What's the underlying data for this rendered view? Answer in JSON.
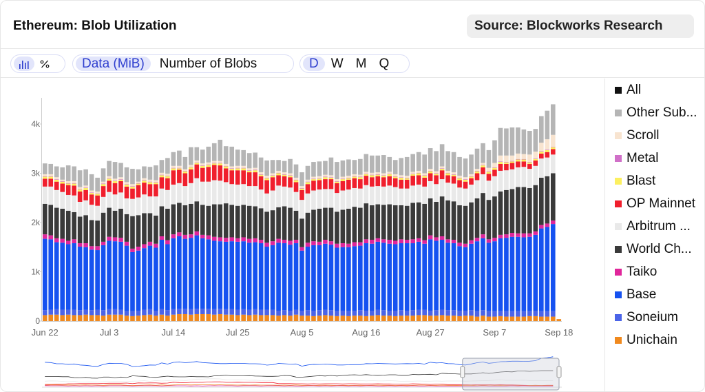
{
  "header": {
    "title": "Ethereum: Blob Utilization",
    "source": "Source: Blockworks Research"
  },
  "toolbar": {
    "chart_modes": [
      {
        "icon": "bar-chart-icon",
        "active": true
      },
      {
        "icon": "percent-icon",
        "active": false
      }
    ],
    "metrics": [
      {
        "label": "Data (MiB)",
        "active": true
      },
      {
        "label": "Number of Blobs",
        "active": false
      }
    ],
    "periods": [
      {
        "label": "D",
        "active": true
      },
      {
        "label": "W",
        "active": false
      },
      {
        "label": "M",
        "active": false
      },
      {
        "label": "Q",
        "active": false
      }
    ]
  },
  "legend": [
    {
      "label": "All",
      "color": "#111111"
    },
    {
      "label": "Other Sub...",
      "color": "#b5b5b5"
    },
    {
      "label": "Scroll",
      "color": "#f8e4d0"
    },
    {
      "label": "Metal",
      "color": "#d070c8"
    },
    {
      "label": "Blast",
      "color": "#fcf060"
    },
    {
      "label": "OP Mainnet",
      "color": "#f01f2d"
    },
    {
      "label": "Arbitrum ...",
      "color": "#e9e9e9"
    },
    {
      "label": "World Ch...",
      "color": "#3a3a3a"
    },
    {
      "label": "Taiko",
      "color": "#e0269b"
    },
    {
      "label": "Base",
      "color": "#1652f0"
    },
    {
      "label": "Soneium",
      "color": "#4b64e8"
    },
    {
      "label": "Unichain",
      "color": "#f0891e"
    }
  ],
  "chart_data": {
    "type": "bar",
    "stacked": true,
    "x_tick_labels": [
      "Jun 22",
      "Jul 3",
      "Jul 14",
      "Jul 25",
      "Aug 5",
      "Aug 16",
      "Aug 27",
      "Sep 7",
      "Sep 18"
    ],
    "y_tick_labels": [
      "0",
      "1k",
      "2k",
      "3k",
      "4k"
    ],
    "ylim": [
      0,
      4400
    ],
    "grid": false,
    "legend_position": "right",
    "watermark": "Blockworks Research",
    "categories": [
      "Jun 22",
      "Jun 23",
      "Jun 24",
      "Jun 25",
      "Jun 26",
      "Jun 27",
      "Jun 28",
      "Jun 29",
      "Jun 30",
      "Jul 1",
      "Jul 2",
      "Jul 3",
      "Jul 4",
      "Jul 5",
      "Jul 6",
      "Jul 7",
      "Jul 8",
      "Jul 9",
      "Jul 10",
      "Jul 11",
      "Jul 12",
      "Jul 13",
      "Jul 14",
      "Jul 15",
      "Jul 16",
      "Jul 17",
      "Jul 18",
      "Jul 19",
      "Jul 20",
      "Jul 21",
      "Jul 22",
      "Jul 23",
      "Jul 24",
      "Jul 25",
      "Jul 26",
      "Jul 27",
      "Jul 28",
      "Jul 29",
      "Jul 30",
      "Jul 31",
      "Aug 1",
      "Aug 2",
      "Aug 3",
      "Aug 4",
      "Aug 5",
      "Aug 6",
      "Aug 7",
      "Aug 8",
      "Aug 9",
      "Aug 10",
      "Aug 11",
      "Aug 12",
      "Aug 13",
      "Aug 14",
      "Aug 15",
      "Aug 16",
      "Aug 17",
      "Aug 18",
      "Aug 19",
      "Aug 20",
      "Aug 21",
      "Aug 22",
      "Aug 23",
      "Aug 24",
      "Aug 25",
      "Aug 26",
      "Aug 27",
      "Aug 28",
      "Aug 29",
      "Aug 30",
      "Aug 31",
      "Sep 1",
      "Sep 2",
      "Sep 3",
      "Sep 4",
      "Sep 5",
      "Sep 6",
      "Sep 7",
      "Sep 8",
      "Sep 9",
      "Sep 10",
      "Sep 11",
      "Sep 12",
      "Sep 13",
      "Sep 14",
      "Sep 15",
      "Sep 16",
      "Sep 17",
      "Sep 18"
    ],
    "series": [
      {
        "name": "Unichain",
        "values": [
          120,
          130,
          130,
          120,
          130,
          120,
          120,
          130,
          120,
          120,
          110,
          130,
          130,
          130,
          110,
          100,
          110,
          120,
          130,
          110,
          130,
          110,
          130,
          140,
          140,
          130,
          140,
          140,
          140,
          130,
          140,
          130,
          130,
          120,
          130,
          120,
          130,
          120,
          120,
          120,
          110,
          120,
          110,
          130,
          110,
          110,
          100,
          110,
          120,
          110,
          100,
          110,
          100,
          110,
          110,
          100,
          110,
          120,
          110,
          110,
          100,
          110,
          110,
          110,
          120,
          120,
          110,
          110,
          120,
          110,
          110,
          100,
          110,
          110,
          90,
          110,
          90,
          90,
          100,
          90,
          90,
          90,
          90,
          100,
          100,
          90,
          90,
          90,
          40
        ]
      },
      {
        "name": "Soneium",
        "values": [
          100,
          100,
          110,
          110,
          100,
          110,
          100,
          100,
          100,
          110,
          110,
          110,
          110,
          100,
          90,
          100,
          100,
          110,
          110,
          100,
          110,
          110,
          110,
          110,
          110,
          110,
          110,
          110,
          110,
          110,
          110,
          110,
          110,
          110,
          110,
          110,
          110,
          110,
          110,
          110,
          100,
          100,
          100,
          100,
          100,
          110,
          110,
          110,
          110,
          110,
          100,
          100,
          100,
          100,
          110,
          110,
          100,
          110,
          110,
          100,
          110,
          110,
          100,
          110,
          110,
          110,
          100,
          110,
          110,
          110,
          110,
          110,
          100,
          110,
          110,
          110,
          110,
          110,
          100,
          110,
          110,
          110,
          110,
          100,
          110,
          110,
          110,
          110,
          0
        ]
      },
      {
        "name": "Base",
        "values": [
          1450,
          1430,
          1360,
          1360,
          1330,
          1350,
          1290,
          1270,
          1230,
          1210,
          1320,
          1390,
          1380,
          1380,
          1330,
          1200,
          1220,
          1250,
          1290,
          1280,
          1410,
          1340,
          1440,
          1470,
          1420,
          1450,
          1490,
          1430,
          1410,
          1390,
          1370,
          1370,
          1380,
          1380,
          1380,
          1360,
          1360,
          1350,
          1280,
          1310,
          1380,
          1360,
          1340,
          1350,
          1220,
          1290,
          1330,
          1320,
          1340,
          1330,
          1290,
          1290,
          1300,
          1310,
          1310,
          1370,
          1360,
          1380,
          1370,
          1360,
          1350,
          1360,
          1370,
          1360,
          1380,
          1340,
          1450,
          1410,
          1420,
          1370,
          1360,
          1310,
          1290,
          1350,
          1420,
          1460,
          1390,
          1420,
          1480,
          1490,
          1510,
          1510,
          1500,
          1510,
          1540,
          1680,
          1710,
          1770,
          0
        ]
      },
      {
        "name": "Taiko",
        "values": [
          90,
          80,
          80,
          80,
          70,
          80,
          70,
          80,
          70,
          80,
          70,
          80,
          80,
          80,
          80,
          70,
          80,
          80,
          80,
          80,
          70,
          80,
          80,
          80,
          80,
          70,
          80,
          70,
          80,
          80,
          80,
          80,
          80,
          70,
          80,
          80,
          80,
          70,
          80,
          80,
          80,
          70,
          80,
          70,
          70,
          80,
          80,
          70,
          80,
          70,
          80,
          80,
          70,
          80,
          70,
          80,
          80,
          70,
          70,
          80,
          70,
          80,
          70,
          80,
          70,
          70,
          80,
          70,
          70,
          70,
          70,
          70,
          70,
          70,
          70,
          80,
          70,
          70,
          70,
          70,
          80,
          70,
          80,
          70,
          70,
          70,
          70,
          70,
          0
        ]
      },
      {
        "name": "World Ch...",
        "values": [
          620,
          620,
          620,
          610,
          610,
          550,
          540,
          570,
          530,
          520,
          590,
          590,
          540,
          590,
          560,
          660,
          640,
          630,
          580,
          570,
          610,
          640,
          610,
          600,
          600,
          620,
          610,
          610,
          600,
          660,
          670,
          700,
          660,
          660,
          660,
          670,
          650,
          640,
          630,
          630,
          640,
          680,
          670,
          590,
          580,
          610,
          640,
          670,
          650,
          680,
          650,
          680,
          710,
          720,
          700,
          730,
          700,
          690,
          700,
          720,
          720,
          690,
          690,
          740,
          730,
          740,
          750,
          720,
          810,
          790,
          780,
          760,
          770,
          770,
          800,
          840,
          800,
          840,
          880,
          900,
          890,
          940,
          940,
          920,
          940,
          960,
          960,
          960,
          0
        ]
      },
      {
        "name": "Arbitrum ...",
        "values": [
          350,
          370,
          360,
          340,
          320,
          340,
          300,
          300,
          310,
          300,
          320,
          320,
          330,
          330,
          320,
          350,
          360,
          380,
          340,
          390,
          360,
          380,
          400,
          400,
          390,
          420,
          470,
          470,
          490,
          490,
          480,
          430,
          420,
          430,
          420,
          400,
          410,
          380,
          370,
          400,
          440,
          400,
          410,
          380,
          380,
          390,
          390,
          390,
          380,
          380,
          380,
          390,
          390,
          380,
          390,
          370,
          380,
          370,
          370,
          380,
          370,
          340,
          350,
          350,
          360,
          350,
          350,
          360,
          350,
          360,
          360,
          360,
          350,
          360,
          370,
          380,
          390,
          410,
          420,
          400,
          400,
          400,
          410,
          390,
          390,
          390,
          380,
          380,
          0
        ]
      },
      {
        "name": "OP Mainnet",
        "values": [
          160,
          160,
          170,
          170,
          200,
          200,
          210,
          210,
          210,
          210,
          220,
          230,
          230,
          230,
          240,
          210,
          250,
          240,
          250,
          250,
          230,
          240,
          290,
          270,
          260,
          280,
          280,
          280,
          300,
          310,
          310,
          280,
          280,
          290,
          280,
          280,
          280,
          270,
          270,
          270,
          210,
          210,
          210,
          200,
          200,
          190,
          200,
          190,
          200,
          200,
          200,
          190,
          200,
          200,
          190,
          190,
          190,
          200,
          190,
          190,
          180,
          180,
          180,
          200,
          190,
          180,
          160,
          180,
          180,
          150,
          150,
          150,
          140,
          130,
          140,
          140,
          140,
          130,
          140,
          130,
          130,
          120,
          110,
          100,
          110,
          100,
          110,
          110,
          0
        ]
      },
      {
        "name": "Blast",
        "values": [
          40,
          40,
          40,
          40,
          30,
          40,
          40,
          40,
          30,
          30,
          40,
          40,
          40,
          30,
          40,
          40,
          30,
          40,
          40,
          30,
          40,
          40,
          40,
          30,
          40,
          40,
          30,
          40,
          40,
          30,
          40,
          40,
          30,
          40,
          40,
          30,
          40,
          30,
          40,
          30,
          40,
          30,
          30,
          40,
          30,
          40,
          30,
          30,
          40,
          30,
          30,
          40,
          30,
          30,
          40,
          30,
          40,
          30,
          30,
          40,
          30,
          40,
          30,
          30,
          40,
          40,
          40,
          30,
          30,
          40,
          30,
          40,
          40,
          30,
          40,
          40,
          40,
          40,
          40,
          30,
          30,
          40,
          40,
          30,
          30,
          40,
          40,
          40,
          0
        ]
      },
      {
        "name": "Metal",
        "values": [
          10,
          10,
          10,
          10,
          10,
          10,
          10,
          10,
          10,
          10,
          10,
          10,
          10,
          10,
          10,
          10,
          10,
          10,
          10,
          10,
          10,
          10,
          10,
          10,
          10,
          10,
          10,
          10,
          10,
          10,
          10,
          10,
          10,
          10,
          10,
          10,
          10,
          10,
          10,
          10,
          10,
          10,
          10,
          10,
          10,
          10,
          10,
          10,
          10,
          10,
          10,
          10,
          10,
          10,
          10,
          10,
          10,
          10,
          10,
          10,
          10,
          10,
          10,
          10,
          10,
          10,
          10,
          10,
          10,
          10,
          10,
          10,
          10,
          10,
          10,
          10,
          10,
          10,
          10,
          10,
          10,
          10,
          10,
          10,
          10,
          10,
          10,
          10,
          0
        ]
      },
      {
        "name": "Scroll",
        "values": [
          40,
          40,
          40,
          30,
          40,
          40,
          40,
          40,
          40,
          40,
          40,
          40,
          40,
          40,
          40,
          40,
          30,
          40,
          40,
          40,
          40,
          40,
          40,
          40,
          30,
          40,
          40,
          40,
          40,
          40,
          40,
          40,
          40,
          40,
          40,
          40,
          40,
          40,
          40,
          40,
          40,
          40,
          40,
          40,
          40,
          40,
          40,
          40,
          40,
          40,
          40,
          40,
          40,
          40,
          40,
          40,
          40,
          40,
          40,
          40,
          40,
          40,
          40,
          40,
          40,
          40,
          40,
          40,
          40,
          40,
          40,
          40,
          40,
          40,
          40,
          40,
          70,
          90,
          120,
          130,
          110,
          110,
          100,
          150,
          140,
          170,
          210,
          240,
          0
        ]
      },
      {
        "name": "Other Sub...",
        "values": [
          220,
          210,
          220,
          250,
          320,
          300,
          340,
          330,
          330,
          280,
          270,
          310,
          340,
          290,
          300,
          310,
          250,
          240,
          260,
          300,
          260,
          320,
          280,
          310,
          250,
          360,
          270,
          280,
          320,
          360,
          430,
          360,
          400,
          330,
          320,
          310,
          310,
          300,
          310,
          270,
          220,
          230,
          290,
          270,
          280,
          280,
          300,
          300,
          280,
          360,
          350,
          330,
          330,
          290,
          320,
          360,
          350,
          340,
          370,
          300,
          290,
          350,
          380,
          360,
          380,
          380,
          420,
          410,
          450,
          400,
          410,
          380,
          380,
          400,
          410,
          400,
          360,
          460,
          560,
          550,
          570,
          530,
          500,
          480,
          460,
          540,
          580,
          620,
          0
        ]
      }
    ]
  },
  "navigator": {
    "note": "overview mini chart"
  }
}
